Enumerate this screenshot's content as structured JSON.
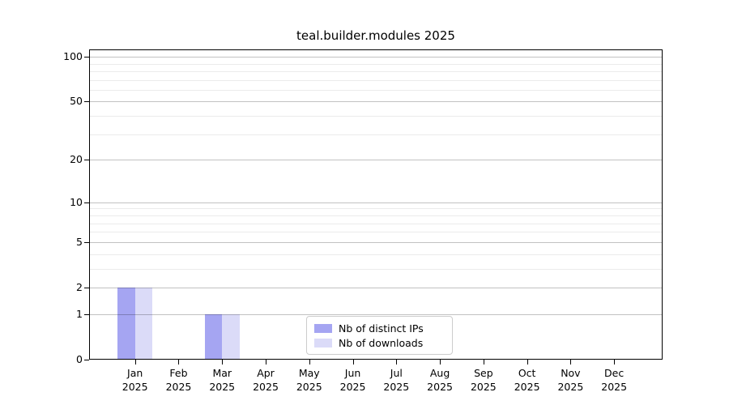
{
  "chart_data": {
    "type": "bar",
    "title": "teal.builder.modules 2025",
    "categories": [
      "Jan",
      "Feb",
      "Mar",
      "Apr",
      "May",
      "Jun",
      "Jul",
      "Aug",
      "Sep",
      "Oct",
      "Nov",
      "Dec"
    ],
    "category_year": "2025",
    "series": [
      {
        "name": "Nb of distinct IPs",
        "color": "#a5a5f2",
        "values": [
          2,
          0,
          1,
          0,
          0,
          0,
          0,
          0,
          0,
          0,
          0,
          0
        ]
      },
      {
        "name": "Nb of downloads",
        "color": "#dbdbf8",
        "values": [
          2,
          0,
          1,
          0,
          0,
          0,
          0,
          0,
          0,
          0,
          0,
          0
        ]
      }
    ],
    "yscale": "log10(1+x)",
    "ylim": [
      0,
      112
    ],
    "yticks_major": [
      0,
      1,
      2,
      5,
      10,
      20,
      50,
      100
    ],
    "yticks_minor": [
      3,
      4,
      6,
      7,
      8,
      9,
      30,
      40,
      60,
      70,
      80,
      90
    ],
    "grid": true,
    "legend_position": "lower center",
    "xlabel": "",
    "ylabel": ""
  },
  "colors": {
    "spine": "#000000",
    "grid_major": "rgba(0,0,0,0.24)",
    "grid_minor": "rgba(0,0,0,0.08)",
    "legend_border": "#cccccc",
    "background": "#ffffff"
  }
}
